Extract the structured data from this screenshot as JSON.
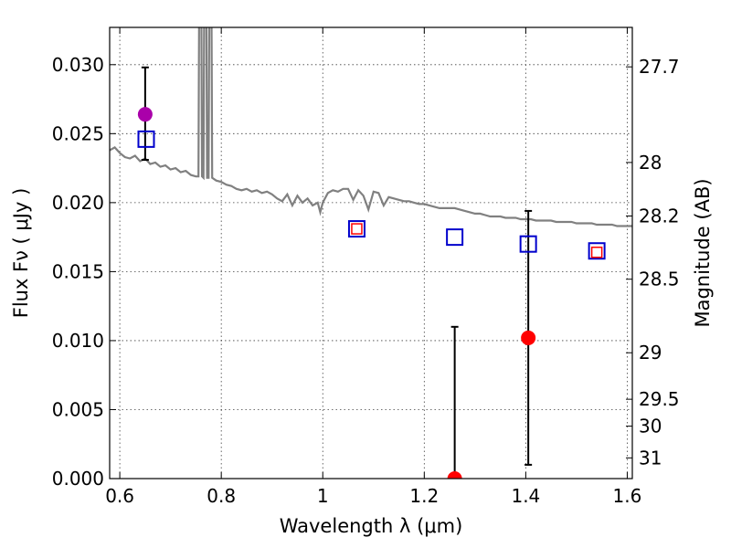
{
  "chart_data": {
    "type": "scatter",
    "xlabel": "Wavelength  λ (μm)",
    "ylabel": "Flux  Fν  ( μJy )",
    "ylabel_right": "Magnitude (AB)",
    "xlim": [
      0.58,
      1.61
    ],
    "ylim": [
      0,
      0.0327
    ],
    "x_ticks": [
      0.6,
      0.8,
      1.0,
      1.2,
      1.4,
      1.6
    ],
    "x_tick_labels": [
      "0.6",
      "0.8",
      "1",
      "1.2",
      "1.4",
      "1.6"
    ],
    "y_ticks": [
      0.0,
      0.005,
      0.01,
      0.015,
      0.02,
      0.025,
      0.03
    ],
    "y_tick_labels": [
      "0.000",
      "0.005",
      "0.010",
      "0.015",
      "0.020",
      "0.025",
      "0.030"
    ],
    "right_ticks": [
      {
        "flux": 0.02984,
        "label": "27.7"
      },
      {
        "flux": 0.02291,
        "label": "28"
      },
      {
        "flux": 0.01903,
        "label": "28.2"
      },
      {
        "flux": 0.01445,
        "label": "28.5"
      },
      {
        "flux": 0.00912,
        "label": "29"
      },
      {
        "flux": 0.00575,
        "label": "29.5"
      },
      {
        "flux": 0.0038,
        "label": "30"
      },
      {
        "flux": 0.0015,
        "label": "31"
      }
    ],
    "grid": true,
    "spectrum": {
      "color": "#808080",
      "points": [
        [
          0.58,
          0.0238
        ],
        [
          0.59,
          0.024
        ],
        [
          0.6,
          0.0236
        ],
        [
          0.61,
          0.0233
        ],
        [
          0.62,
          0.0232
        ],
        [
          0.63,
          0.0234
        ],
        [
          0.64,
          0.023
        ],
        [
          0.65,
          0.0232
        ],
        [
          0.66,
          0.0228
        ],
        [
          0.67,
          0.0229
        ],
        [
          0.68,
          0.0226
        ],
        [
          0.69,
          0.0227
        ],
        [
          0.7,
          0.0224
        ],
        [
          0.71,
          0.0225
        ],
        [
          0.72,
          0.0222
        ],
        [
          0.73,
          0.0223
        ],
        [
          0.74,
          0.022
        ],
        [
          0.75,
          0.0219
        ],
        [
          0.755,
          0.0219
        ],
        [
          0.757,
          0.04
        ],
        [
          0.76,
          0.04
        ],
        [
          0.762,
          0.0219
        ],
        [
          0.765,
          0.0218
        ],
        [
          0.767,
          0.04
        ],
        [
          0.77,
          0.04
        ],
        [
          0.772,
          0.0218
        ],
        [
          0.775,
          0.0218
        ],
        [
          0.777,
          0.04
        ],
        [
          0.78,
          0.04
        ],
        [
          0.782,
          0.0218
        ],
        [
          0.79,
          0.0216
        ],
        [
          0.8,
          0.0215
        ],
        [
          0.81,
          0.0213
        ],
        [
          0.82,
          0.0212
        ],
        [
          0.83,
          0.021
        ],
        [
          0.84,
          0.0209
        ],
        [
          0.85,
          0.021
        ],
        [
          0.86,
          0.0208
        ],
        [
          0.87,
          0.0209
        ],
        [
          0.88,
          0.0207
        ],
        [
          0.89,
          0.0208
        ],
        [
          0.9,
          0.0206
        ],
        [
          0.91,
          0.0203
        ],
        [
          0.92,
          0.0201
        ],
        [
          0.93,
          0.0206
        ],
        [
          0.94,
          0.0198
        ],
        [
          0.95,
          0.0205
        ],
        [
          0.96,
          0.02
        ],
        [
          0.97,
          0.0203
        ],
        [
          0.98,
          0.0198
        ],
        [
          0.99,
          0.02
        ],
        [
          0.995,
          0.0193
        ],
        [
          1.0,
          0.02
        ],
        [
          1.01,
          0.0207
        ],
        [
          1.02,
          0.0209
        ],
        [
          1.03,
          0.0208
        ],
        [
          1.04,
          0.021
        ],
        [
          1.05,
          0.021
        ],
        [
          1.06,
          0.0202
        ],
        [
          1.07,
          0.0209
        ],
        [
          1.08,
          0.0205
        ],
        [
          1.09,
          0.0195
        ],
        [
          1.1,
          0.0208
        ],
        [
          1.11,
          0.0207
        ],
        [
          1.12,
          0.0198
        ],
        [
          1.13,
          0.0204
        ],
        [
          1.14,
          0.0203
        ],
        [
          1.15,
          0.0202
        ],
        [
          1.16,
          0.0201
        ],
        [
          1.17,
          0.0201
        ],
        [
          1.18,
          0.02
        ],
        [
          1.19,
          0.0199
        ],
        [
          1.2,
          0.0199
        ],
        [
          1.21,
          0.0198
        ],
        [
          1.22,
          0.0197
        ],
        [
          1.23,
          0.0196
        ],
        [
          1.24,
          0.0196
        ],
        [
          1.25,
          0.0196
        ],
        [
          1.26,
          0.0196
        ],
        [
          1.27,
          0.0195
        ],
        [
          1.28,
          0.0194
        ],
        [
          1.29,
          0.0193
        ],
        [
          1.3,
          0.0192
        ],
        [
          1.31,
          0.0192
        ],
        [
          1.32,
          0.0191
        ],
        [
          1.33,
          0.019
        ],
        [
          1.34,
          0.019
        ],
        [
          1.35,
          0.019
        ],
        [
          1.36,
          0.0189
        ],
        [
          1.37,
          0.0189
        ],
        [
          1.38,
          0.0189
        ],
        [
          1.39,
          0.0188
        ],
        [
          1.4,
          0.0188
        ],
        [
          1.41,
          0.0188
        ],
        [
          1.42,
          0.0187
        ],
        [
          1.43,
          0.0187
        ],
        [
          1.44,
          0.0187
        ],
        [
          1.45,
          0.0187
        ],
        [
          1.46,
          0.0186
        ],
        [
          1.47,
          0.0186
        ],
        [
          1.48,
          0.0186
        ],
        [
          1.49,
          0.0186
        ],
        [
          1.5,
          0.0185
        ],
        [
          1.51,
          0.0185
        ],
        [
          1.52,
          0.0185
        ],
        [
          1.53,
          0.0185
        ],
        [
          1.54,
          0.0184
        ],
        [
          1.55,
          0.0184
        ],
        [
          1.56,
          0.0184
        ],
        [
          1.57,
          0.0184
        ],
        [
          1.58,
          0.0183
        ],
        [
          1.59,
          0.0183
        ],
        [
          1.6,
          0.0183
        ],
        [
          1.61,
          0.0183
        ]
      ]
    },
    "model_points": [
      {
        "x": 0.652,
        "y": 0.0246,
        "color": "#0000cc"
      },
      {
        "x": 1.067,
        "y": 0.0181,
        "color": "#0000cc"
      },
      {
        "x": 1.26,
        "y": 0.0175,
        "color": "#0000cc"
      },
      {
        "x": 1.405,
        "y": 0.017,
        "color": "#0000cc"
      },
      {
        "x": 1.54,
        "y": 0.0165,
        "color": "#0000cc"
      }
    ],
    "model_inner_points": [
      {
        "x": 1.067,
        "y": 0.0181,
        "color": "#ff0000"
      },
      {
        "x": 1.54,
        "y": 0.0164,
        "color": "#ff0000"
      }
    ],
    "observed_points": [
      {
        "x": 0.65,
        "y": 0.0264,
        "yerr_low": 0.0231,
        "yerr_high": 0.0298,
        "color": "#aa00aa"
      },
      {
        "x": 1.26,
        "y": 0.0,
        "yerr_low": 0.0,
        "yerr_high": 0.011,
        "color": "#ff0000"
      },
      {
        "x": 1.405,
        "y": 0.0102,
        "yerr_low": 0.001,
        "yerr_high": 0.0194,
        "color": "#ff0000"
      }
    ]
  }
}
